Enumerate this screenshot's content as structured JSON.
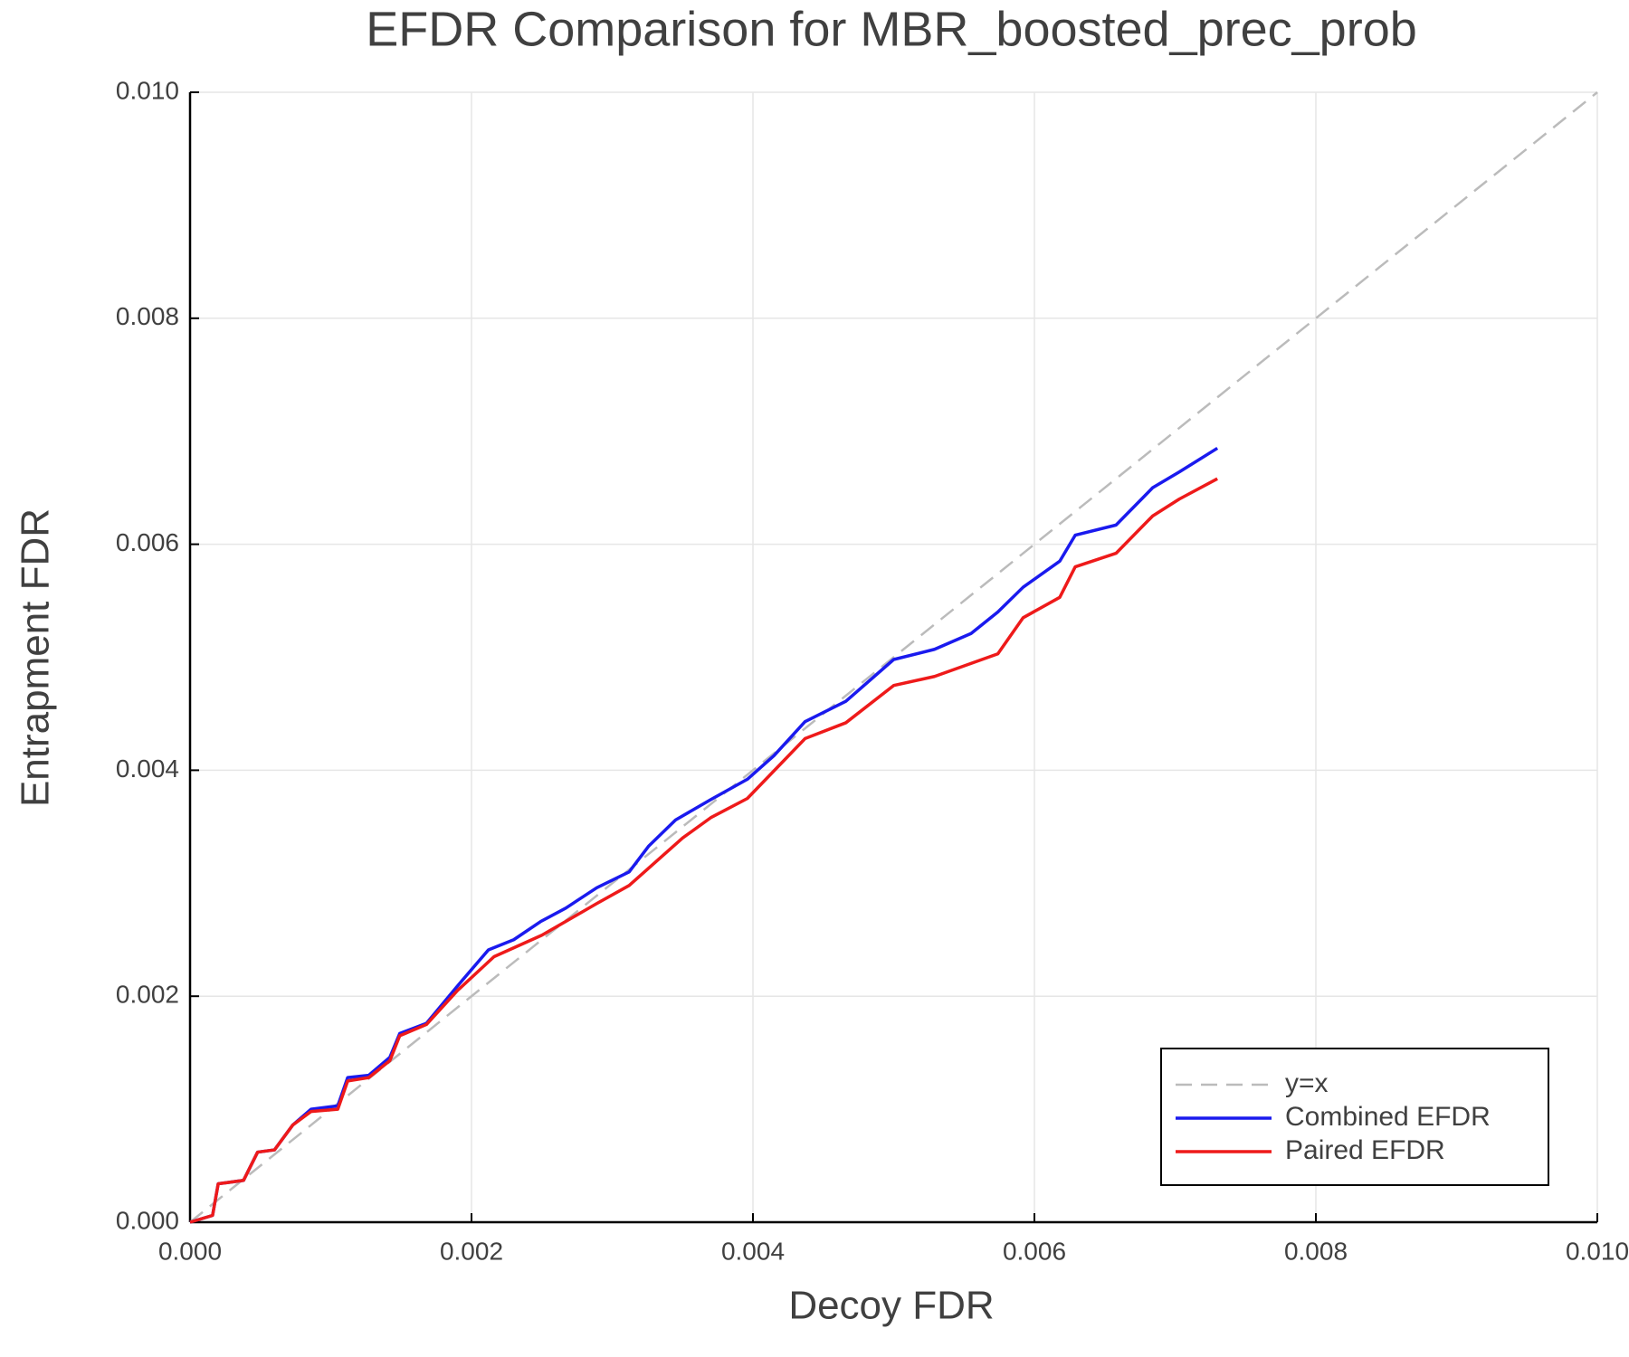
{
  "chart_data": {
    "type": "line",
    "title": "EFDR Comparison for MBR_boosted_prec_prob",
    "x_label": "Decoy FDR",
    "y_label": "Entrapment FDR",
    "xlim": [
      0,
      0.01
    ],
    "ylim": [
      0,
      0.01
    ],
    "xticks": [
      {
        "value": 0,
        "label": "0.000"
      },
      {
        "value": 0.002,
        "label": "0.002"
      },
      {
        "value": 0.004,
        "label": "0.004"
      },
      {
        "value": 0.006,
        "label": "0.006"
      },
      {
        "value": 0.008,
        "label": "0.008"
      },
      {
        "value": 0.01,
        "label": "0.010"
      }
    ],
    "yticks": [
      {
        "value": 0,
        "label": "0.000"
      },
      {
        "value": 0.002,
        "label": "0.002"
      },
      {
        "value": 0.004,
        "label": "0.004"
      },
      {
        "value": 0.006,
        "label": "0.006"
      },
      {
        "value": 0.008,
        "label": "0.008"
      },
      {
        "value": 0.01,
        "label": "0.010"
      }
    ],
    "grid": true,
    "legend": "bottom right",
    "series": [
      {
        "name": "y=x",
        "color": "#bbbbbb",
        "dashed": true,
        "x": [
          0,
          0.01
        ],
        "values": [
          0,
          0.01
        ]
      },
      {
        "name": "Combined EFDR",
        "color": "#1a1aee",
        "dashed": false,
        "x": [
          0,
          0.00016,
          0.0002,
          0.00038,
          0.00048,
          0.0006,
          0.00073,
          0.00086,
          0.00105,
          0.00112,
          0.00127,
          0.00142,
          0.00149,
          0.00168,
          0.0019,
          0.00212,
          0.0023,
          0.00249,
          0.00267,
          0.00289,
          0.00312,
          0.00326,
          0.00345,
          0.0037,
          0.00396,
          0.00415,
          0.00437,
          0.00466,
          0.005,
          0.00529,
          0.00555,
          0.00574,
          0.00592,
          0.00618,
          0.00629,
          0.00658,
          0.00684,
          0.00703,
          0.0073
        ],
        "values": [
          0,
          6e-05,
          0.00034,
          0.00037,
          0.00062,
          0.00064,
          0.00086,
          0.001,
          0.00103,
          0.00128,
          0.0013,
          0.00146,
          0.00167,
          0.00176,
          0.00209,
          0.00241,
          0.0025,
          0.00266,
          0.00278,
          0.00296,
          0.0031,
          0.00333,
          0.00356,
          0.00374,
          0.00392,
          0.00413,
          0.00443,
          0.00461,
          0.00498,
          0.00507,
          0.00521,
          0.0054,
          0.00562,
          0.00585,
          0.00608,
          0.00617,
          0.0065,
          0.00664,
          0.00685
        ]
      },
      {
        "name": "Paired EFDR",
        "color": "#ee1a1a",
        "dashed": false,
        "x": [
          0,
          0.00016,
          0.0002,
          0.00038,
          0.00048,
          0.0006,
          0.00073,
          0.00086,
          0.00105,
          0.00112,
          0.00127,
          0.00142,
          0.00149,
          0.00168,
          0.0019,
          0.00216,
          0.0025,
          0.00289,
          0.00312,
          0.0035,
          0.0037,
          0.00396,
          0.00437,
          0.00466,
          0.005,
          0.00529,
          0.00574,
          0.00592,
          0.00618,
          0.00629,
          0.00658,
          0.00684,
          0.00703,
          0.0073
        ],
        "values": [
          0,
          6e-05,
          0.00034,
          0.00037,
          0.00062,
          0.00064,
          0.00086,
          0.00098,
          0.001,
          0.00125,
          0.00128,
          0.00143,
          0.00165,
          0.00175,
          0.00205,
          0.00235,
          0.00254,
          0.00282,
          0.00298,
          0.0034,
          0.00358,
          0.00375,
          0.00428,
          0.00442,
          0.00475,
          0.00483,
          0.00503,
          0.00535,
          0.00553,
          0.0058,
          0.00592,
          0.00625,
          0.0064,
          0.00658
        ]
      }
    ]
  }
}
